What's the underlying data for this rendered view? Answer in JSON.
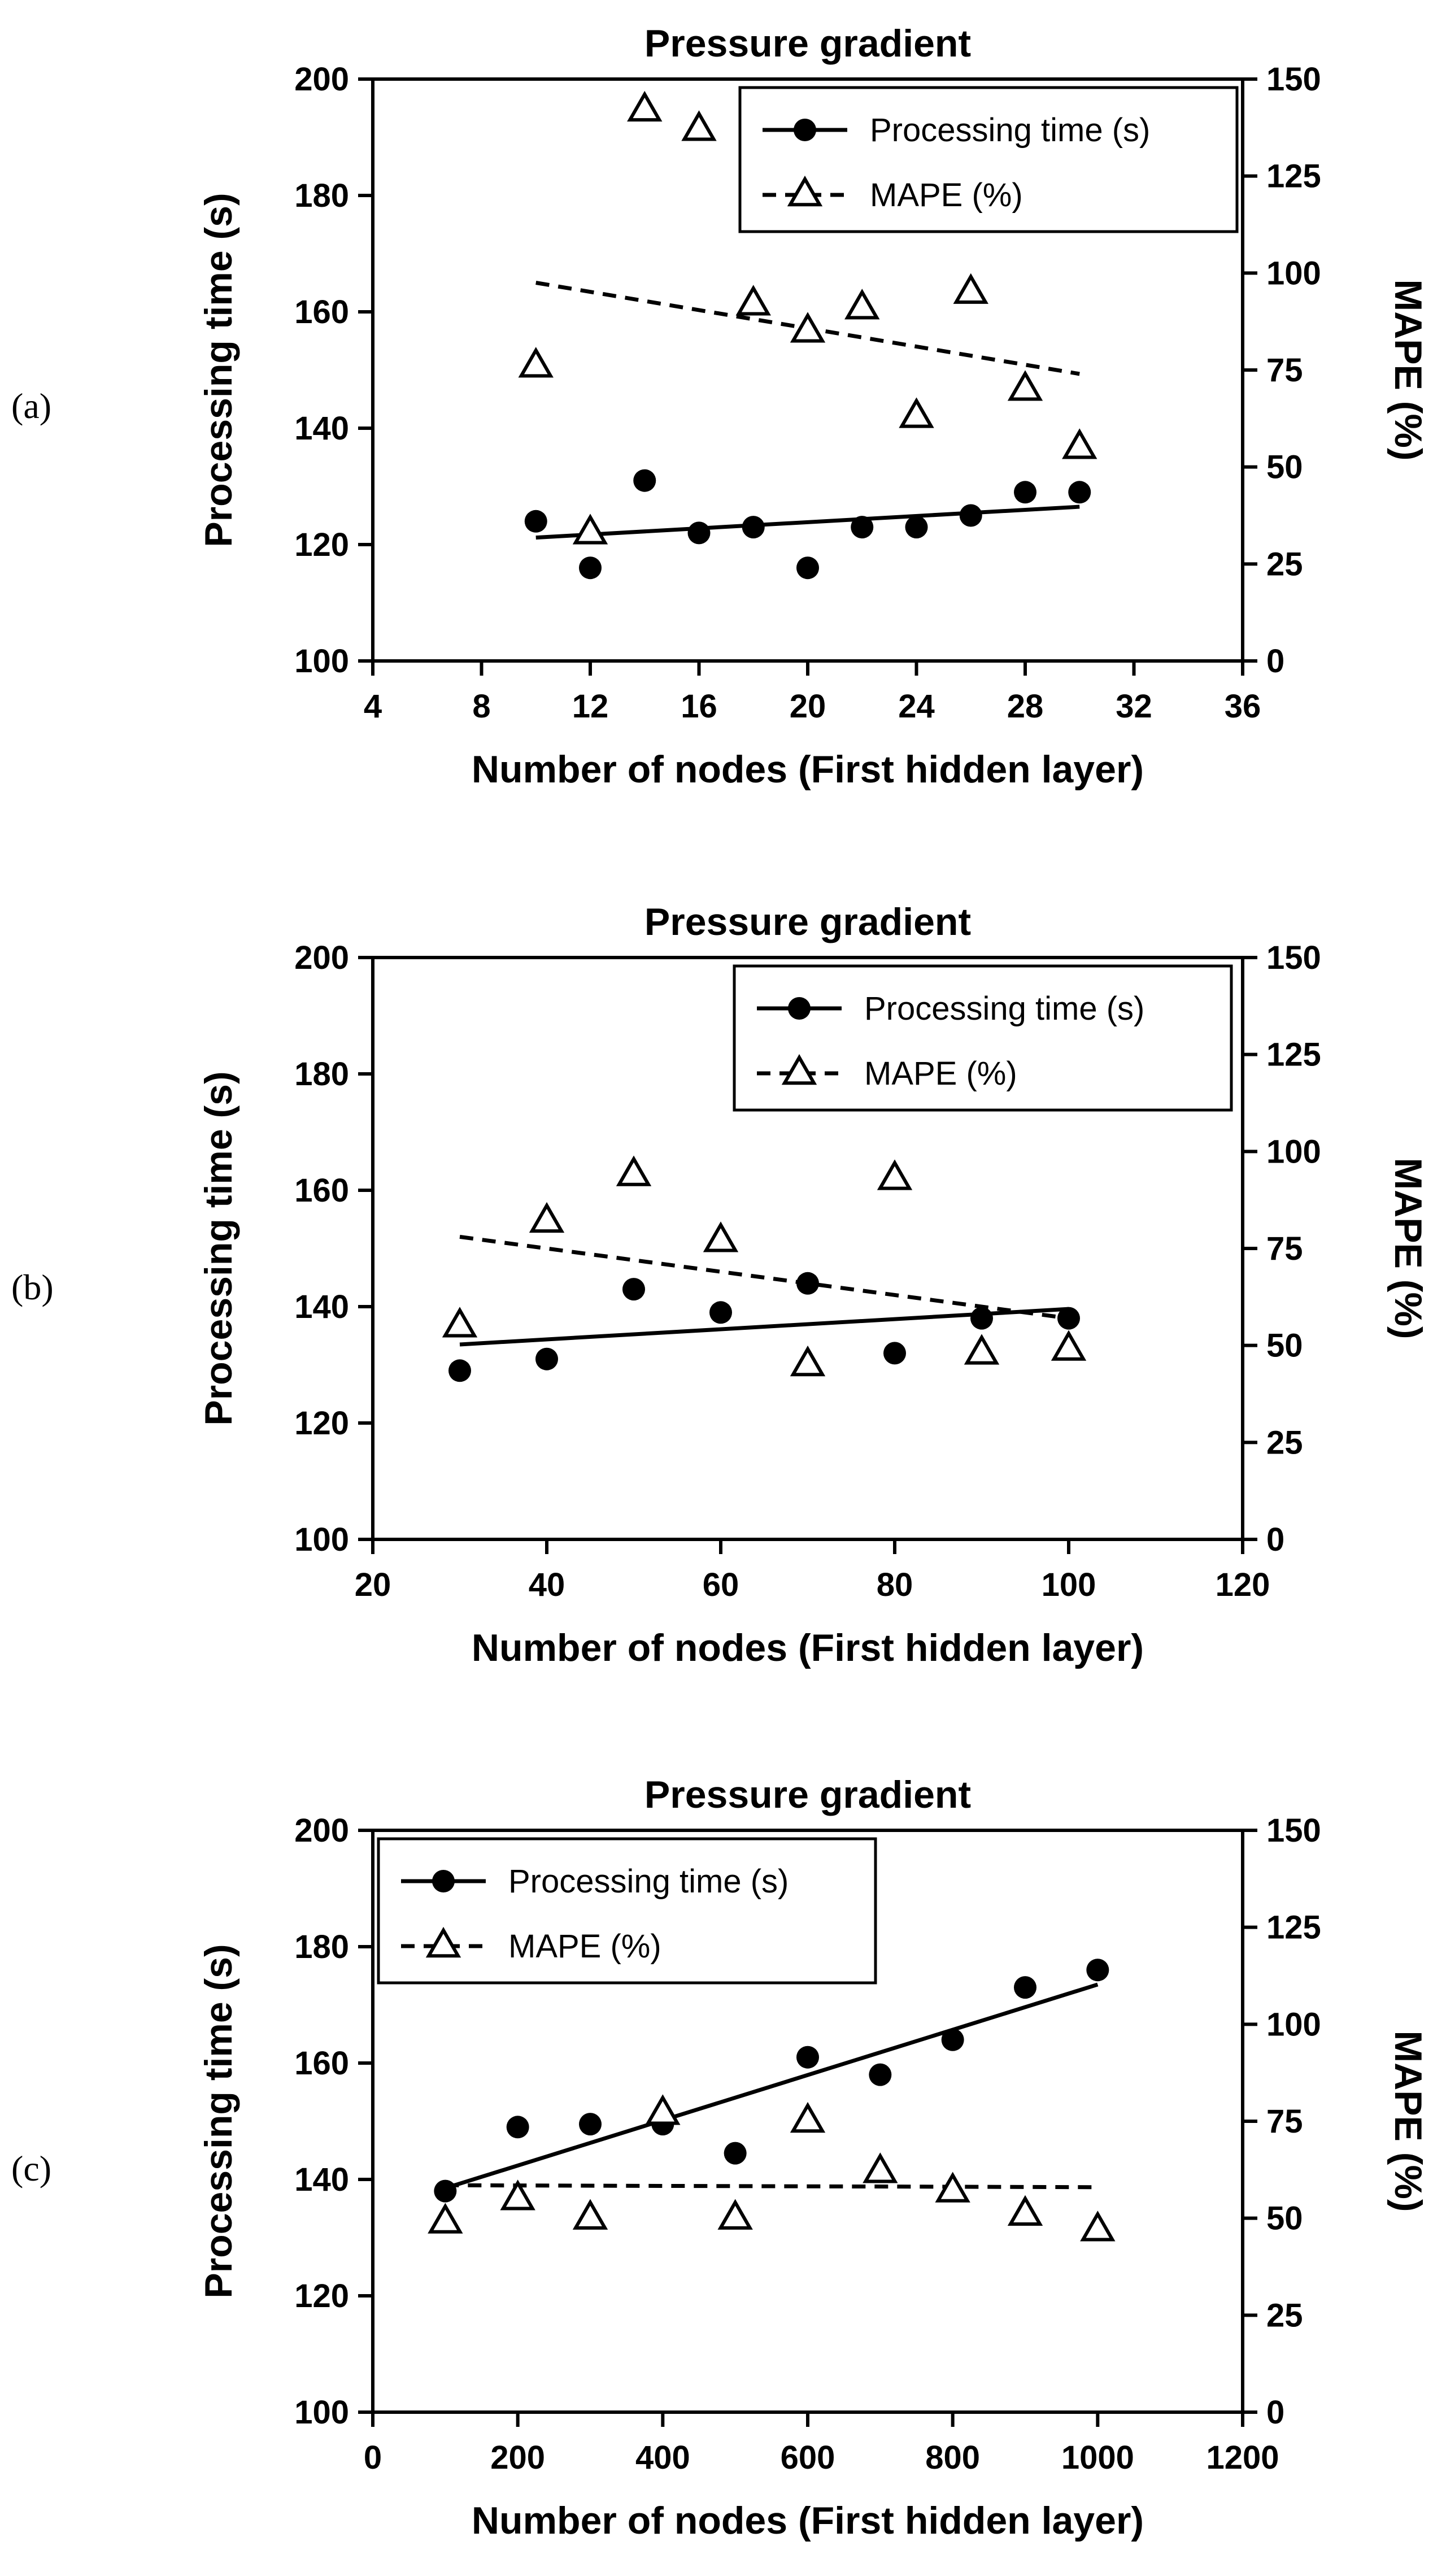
{
  "chart_data": [
    {
      "panel_label": "(a)",
      "type": "scatter",
      "title": "Pressure gradient",
      "xlabel": "Number of nodes (First hidden layer)",
      "ylabel": "Processing time (s)",
      "y2label": "MAPE (%)",
      "xlim": [
        4,
        36
      ],
      "xticks": [
        4,
        8,
        12,
        16,
        20,
        24,
        28,
        32,
        36
      ],
      "ylim": [
        100,
        200
      ],
      "yticks": [
        100,
        120,
        140,
        160,
        180,
        200
      ],
      "y2lim": [
        0,
        150
      ],
      "y2ticks": [
        0,
        25,
        50,
        75,
        100,
        125,
        150
      ],
      "legend_position": "top-right",
      "grid": false,
      "series": [
        {
          "name": "Processing time (s)",
          "axis": "left",
          "marker": "filled-circle",
          "trendline": "solid",
          "x": [
            10,
            12,
            14,
            16,
            18,
            20,
            22,
            24,
            26,
            28,
            30
          ],
          "y": [
            124,
            116,
            131,
            122,
            123,
            116,
            123,
            123,
            125,
            129,
            129
          ],
          "trend": [
            [
              10,
              121.2
            ],
            [
              30,
              126.5
            ]
          ]
        },
        {
          "name": "MAPE (%)",
          "axis": "right",
          "marker": "open-triangle",
          "trendline": "dashed",
          "x": [
            10,
            12,
            14,
            16,
            18,
            20,
            22,
            24,
            26,
            28,
            30
          ],
          "y": [
            76,
            33,
            142,
            137,
            92,
            85,
            91,
            63,
            95,
            70,
            55
          ],
          "trend": [
            [
              10,
              97.5
            ],
            [
              30,
              74
            ]
          ]
        }
      ]
    },
    {
      "panel_label": "(b)",
      "type": "scatter",
      "title": "Pressure gradient",
      "xlabel": "Number of nodes (First hidden layer)",
      "ylabel": "Processing time (s)",
      "y2label": "MAPE (%)",
      "xlim": [
        20,
        120
      ],
      "xticks": [
        20,
        40,
        60,
        80,
        100,
        120
      ],
      "ylim": [
        100,
        200
      ],
      "yticks": [
        100,
        120,
        140,
        160,
        180,
        200
      ],
      "y2lim": [
        0,
        150
      ],
      "y2ticks": [
        0,
        25,
        50,
        75,
        100,
        125,
        150
      ],
      "legend_position": "top-right",
      "grid": false,
      "series": [
        {
          "name": "Processing time (s)",
          "axis": "left",
          "marker": "filled-circle",
          "trendline": "solid",
          "x": [
            30,
            40,
            50,
            60,
            70,
            80,
            90,
            100
          ],
          "y": [
            129,
            131,
            143,
            139,
            144,
            132,
            138,
            138
          ],
          "trend": [
            [
              30,
              133.5
            ],
            [
              100,
              139.6
            ]
          ]
        },
        {
          "name": "MAPE (%)",
          "axis": "right",
          "marker": "open-triangle",
          "trendline": "dashed",
          "x": [
            30,
            40,
            50,
            60,
            70,
            80,
            90,
            100
          ],
          "y": [
            55,
            82,
            94,
            77,
            45,
            93,
            48,
            49
          ],
          "trend": [
            [
              30,
              78
            ],
            [
              100,
              57
            ]
          ]
        }
      ]
    },
    {
      "panel_label": "(c)",
      "type": "scatter",
      "title": "Pressure gradient",
      "xlabel": "Number of nodes (First hidden layer)",
      "ylabel": "Processing time (s)",
      "y2label": "MAPE (%)",
      "xlim": [
        0,
        1200
      ],
      "xticks": [
        0,
        200,
        400,
        600,
        800,
        1000,
        1200
      ],
      "ylim": [
        100,
        200
      ],
      "yticks": [
        100,
        120,
        140,
        160,
        180,
        200
      ],
      "y2lim": [
        0,
        150
      ],
      "y2ticks": [
        0,
        25,
        50,
        75,
        100,
        125,
        150
      ],
      "legend_position": "top-left",
      "grid": false,
      "series": [
        {
          "name": "Processing time (s)",
          "axis": "left",
          "marker": "filled-circle",
          "trendline": "solid",
          "x": [
            100,
            200,
            300,
            400,
            500,
            600,
            700,
            800,
            900,
            1000
          ],
          "y": [
            138,
            149,
            149.5,
            149.5,
            144.5,
            161,
            158,
            164,
            173,
            176
          ],
          "trend": [
            [
              100,
              138.5
            ],
            [
              1000,
              173.5
            ]
          ]
        },
        {
          "name": "MAPE (%)",
          "axis": "right",
          "marker": "open-triangle",
          "trendline": "dashed",
          "x": [
            100,
            200,
            300,
            400,
            500,
            600,
            700,
            800,
            900,
            1000
          ],
          "y": [
            49,
            55,
            50,
            77,
            50,
            75,
            62,
            57,
            51,
            47
          ],
          "trend": [
            [
              100,
              58.5
            ],
            [
              1000,
              58
            ]
          ]
        }
      ]
    }
  ]
}
